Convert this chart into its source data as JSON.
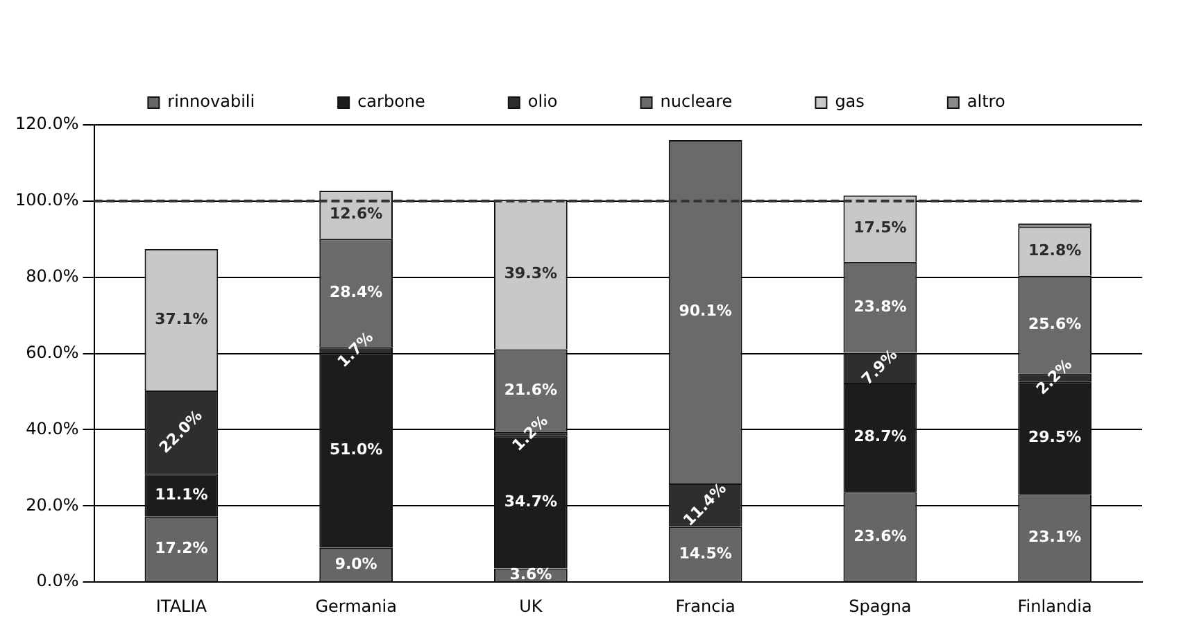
{
  "chart_data": {
    "type": "bar",
    "stacked": true,
    "categories": [
      "ITALIA",
      "Germania",
      "UK",
      "Francia",
      "Spagna",
      "Finlandia"
    ],
    "series": [
      {
        "name": "rinnovabili",
        "color": "#666666",
        "values": [
          17.2,
          9.0,
          3.6,
          14.5,
          23.6,
          23.1
        ],
        "value_labels": [
          "17.2%",
          "9.0%",
          "3.6%",
          "14.5%",
          "23.6%",
          "23.1%"
        ]
      },
      {
        "name": "carbone",
        "color": "#1c1c1c",
        "values": [
          11.1,
          51.0,
          34.7,
          null,
          28.7,
          29.5
        ],
        "value_labels": [
          "11.1%",
          "51.0%",
          "34.7%",
          null,
          "28.7%",
          "29.5%"
        ]
      },
      {
        "name": "olio",
        "color": "#2e2e2e",
        "values": [
          22.0,
          1.7,
          1.2,
          11.4,
          7.9,
          2.2
        ],
        "value_labels": [
          "22.0%",
          "1.7%",
          "1.2%",
          "11.4%",
          "7.9%",
          "2.2%"
        ]
      },
      {
        "name": "nucleare",
        "color": "#6a6a6a",
        "values": [
          null,
          28.4,
          21.6,
          90.1,
          23.8,
          25.6
        ],
        "value_labels": [
          null,
          "28.4%",
          "21.6%",
          "90.1%",
          "23.8%",
          "25.6%"
        ]
      },
      {
        "name": "gas",
        "color": "#c8c8c8",
        "values": [
          37.1,
          12.6,
          39.3,
          null,
          17.5,
          12.8
        ],
        "value_labels": [
          "37.1%",
          "12.6%",
          "39.3%",
          null,
          "17.5%",
          "12.8%"
        ]
      },
      {
        "name": "altro",
        "color": "#8a8a8a",
        "values": [
          null,
          null,
          null,
          null,
          null,
          0.9
        ],
        "value_labels": [
          null,
          null,
          null,
          null,
          null,
          null
        ]
      }
    ],
    "ylim": [
      0,
      120
    ],
    "yticks": [
      {
        "value": 0,
        "label": "0.0%"
      },
      {
        "value": 20,
        "label": "20.0%"
      },
      {
        "value": 40,
        "label": "40.0%"
      },
      {
        "value": 60,
        "label": "60.0%"
      },
      {
        "value": 80,
        "label": "80.0%"
      },
      {
        "value": 100,
        "label": "100.0%"
      },
      {
        "value": 120,
        "label": "120.0%"
      }
    ],
    "grid": "y",
    "legend": "top",
    "ref_lines": [
      {
        "axis": "y",
        "value": 100,
        "color": "#333333",
        "line_style": "dashed"
      }
    ]
  }
}
